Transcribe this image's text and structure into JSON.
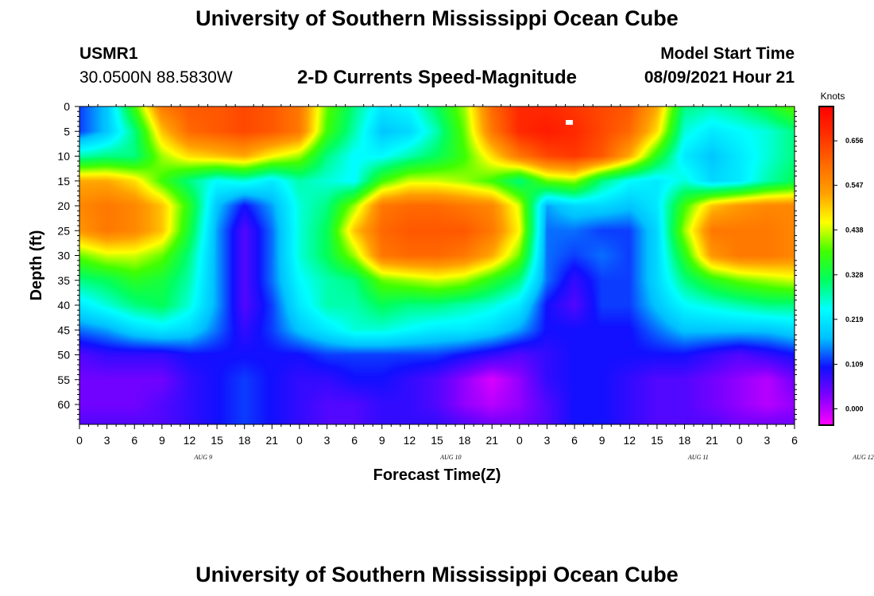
{
  "header": {
    "title": "University of Southern Mississippi Ocean Cube",
    "station_id": "USMR1",
    "location": "30.0500N  88.5830W",
    "chart_title": "2-D Currents Speed-Magnitude",
    "model_start_label": "Model Start Time",
    "model_start_value": "08/09/2021 Hour 21"
  },
  "footer": {
    "title": "University of Southern Mississippi Ocean Cube"
  },
  "chart_data": {
    "type": "heatmap",
    "title": "2-D Currents Speed-Magnitude",
    "xlabel": "Forecast Time(Z)",
    "ylabel": "Depth (ft)",
    "x_hours_from_start": [
      0,
      78
    ],
    "x_tick_labels": [
      "0",
      "3",
      "6",
      "9",
      "12",
      "15",
      "18",
      "21",
      "0",
      "3",
      "6",
      "9",
      "12",
      "15",
      "18",
      "21",
      "0",
      "3",
      "6",
      "9",
      "12",
      "15",
      "18",
      "21",
      "0",
      "3",
      "6"
    ],
    "day_labels": [
      {
        "label": "AUG 9",
        "tick_index": 4.5
      },
      {
        "label": "AUG 10",
        "tick_index": 13.5
      },
      {
        "label": "AUG 11",
        "tick_index": 22.5
      },
      {
        "label": "AUG 12",
        "tick_index": 28.5
      }
    ],
    "ylim": [
      0,
      64
    ],
    "y_ticks": [
      0,
      5,
      10,
      15,
      20,
      25,
      30,
      35,
      40,
      45,
      50,
      55,
      60
    ],
    "colorbar": {
      "unit": "Knots",
      "ticks": [
        "0.656",
        "0.547",
        "0.438",
        "0.328",
        "0.219",
        "0.109",
        "0.000"
      ],
      "range": [
        -0.04,
        0.74
      ],
      "stops": [
        "#ff00ff",
        "#8000ff",
        "#1010ff",
        "#00c0ff",
        "#00ffff",
        "#00ff60",
        "#40ff00",
        "#ffff00",
        "#ffa000",
        "#ff6a00",
        "#ff3000",
        "#ff0000"
      ]
    },
    "depth_rows": [
      0,
      5,
      10,
      15,
      20,
      25,
      30,
      35,
      40,
      45,
      50,
      55,
      60,
      64
    ],
    "hour_cols": [
      0,
      3,
      6,
      9,
      12,
      15,
      18,
      21,
      24,
      27,
      30,
      33,
      36,
      39,
      42,
      45,
      48,
      51,
      54,
      57,
      60,
      63,
      66,
      69,
      72,
      75,
      78
    ],
    "speed_knots": [
      [
        0.12,
        0.18,
        0.38,
        0.58,
        0.62,
        0.62,
        0.64,
        0.62,
        0.58,
        0.4,
        0.3,
        0.22,
        0.24,
        0.32,
        0.42,
        0.6,
        0.68,
        0.68,
        0.66,
        0.64,
        0.62,
        0.52,
        0.3,
        0.28,
        0.3,
        0.34,
        0.4
      ],
      [
        0.12,
        0.18,
        0.3,
        0.5,
        0.6,
        0.62,
        0.64,
        0.62,
        0.58,
        0.38,
        0.28,
        0.18,
        0.2,
        0.28,
        0.4,
        0.58,
        0.68,
        0.7,
        0.68,
        0.64,
        0.6,
        0.48,
        0.26,
        0.22,
        0.24,
        0.26,
        0.3
      ],
      [
        0.28,
        0.3,
        0.3,
        0.42,
        0.48,
        0.5,
        0.52,
        0.46,
        0.42,
        0.3,
        0.24,
        0.24,
        0.28,
        0.32,
        0.38,
        0.48,
        0.58,
        0.64,
        0.66,
        0.62,
        0.52,
        0.36,
        0.22,
        0.18,
        0.22,
        0.26,
        0.3
      ],
      [
        0.52,
        0.52,
        0.48,
        0.38,
        0.3,
        0.24,
        0.26,
        0.22,
        0.28,
        0.26,
        0.24,
        0.38,
        0.44,
        0.44,
        0.42,
        0.38,
        0.3,
        0.4,
        0.42,
        0.3,
        0.24,
        0.22,
        0.26,
        0.2,
        0.22,
        0.28,
        0.32
      ],
      [
        0.56,
        0.58,
        0.56,
        0.5,
        0.36,
        0.18,
        0.1,
        0.16,
        0.26,
        0.3,
        0.42,
        0.58,
        0.6,
        0.6,
        0.58,
        0.56,
        0.44,
        0.16,
        0.2,
        0.2,
        0.18,
        0.22,
        0.38,
        0.5,
        0.54,
        0.56,
        0.56
      ],
      [
        0.54,
        0.58,
        0.56,
        0.5,
        0.34,
        0.16,
        0.06,
        0.14,
        0.26,
        0.32,
        0.5,
        0.6,
        0.62,
        0.62,
        0.62,
        0.58,
        0.46,
        0.14,
        0.14,
        0.12,
        0.12,
        0.2,
        0.42,
        0.58,
        0.58,
        0.58,
        0.56
      ],
      [
        0.4,
        0.44,
        0.44,
        0.4,
        0.3,
        0.16,
        0.06,
        0.14,
        0.26,
        0.32,
        0.42,
        0.58,
        0.6,
        0.6,
        0.58,
        0.52,
        0.4,
        0.14,
        0.12,
        0.14,
        0.12,
        0.2,
        0.36,
        0.54,
        0.58,
        0.58,
        0.56
      ],
      [
        0.3,
        0.32,
        0.36,
        0.34,
        0.28,
        0.16,
        0.06,
        0.14,
        0.24,
        0.28,
        0.3,
        0.4,
        0.42,
        0.44,
        0.42,
        0.36,
        0.3,
        0.14,
        0.08,
        0.12,
        0.12,
        0.2,
        0.3,
        0.36,
        0.4,
        0.42,
        0.44
      ],
      [
        0.22,
        0.26,
        0.3,
        0.32,
        0.26,
        0.16,
        0.06,
        0.12,
        0.22,
        0.28,
        0.28,
        0.32,
        0.3,
        0.3,
        0.28,
        0.26,
        0.22,
        0.1,
        0.06,
        0.12,
        0.12,
        0.18,
        0.24,
        0.26,
        0.28,
        0.3,
        0.3
      ],
      [
        0.14,
        0.16,
        0.2,
        0.22,
        0.2,
        0.14,
        0.08,
        0.12,
        0.18,
        0.22,
        0.26,
        0.26,
        0.24,
        0.22,
        0.22,
        0.2,
        0.16,
        0.1,
        0.1,
        0.1,
        0.1,
        0.14,
        0.18,
        0.18,
        0.18,
        0.18,
        0.2
      ],
      [
        0.06,
        0.08,
        0.08,
        0.08,
        0.1,
        0.1,
        0.1,
        0.1,
        0.1,
        0.12,
        0.12,
        0.12,
        0.12,
        0.12,
        0.1,
        0.08,
        0.06,
        0.08,
        0.1,
        0.1,
        0.1,
        0.1,
        0.1,
        0.08,
        0.06,
        0.08,
        0.1
      ],
      [
        0.04,
        0.04,
        0.04,
        0.04,
        0.08,
        0.1,
        0.12,
        0.1,
        0.08,
        0.08,
        0.1,
        0.1,
        0.08,
        0.06,
        0.02,
        -0.02,
        0.02,
        0.08,
        0.1,
        0.1,
        0.08,
        0.06,
        0.06,
        0.04,
        0.02,
        0.0,
        0.04
      ],
      [
        0.04,
        0.04,
        0.04,
        0.06,
        0.08,
        0.1,
        0.12,
        0.1,
        0.08,
        0.06,
        0.06,
        0.08,
        0.08,
        0.06,
        0.02,
        0.0,
        0.02,
        0.06,
        0.1,
        0.1,
        0.08,
        0.06,
        0.06,
        0.04,
        0.02,
        0.0,
        0.02
      ],
      [
        0.06,
        0.06,
        0.06,
        0.06,
        0.08,
        0.1,
        0.12,
        0.1,
        0.08,
        0.06,
        0.06,
        0.08,
        0.08,
        0.08,
        0.06,
        0.04,
        0.04,
        0.06,
        0.1,
        0.1,
        0.08,
        0.06,
        0.06,
        0.06,
        0.04,
        0.04,
        0.04
      ]
    ]
  }
}
